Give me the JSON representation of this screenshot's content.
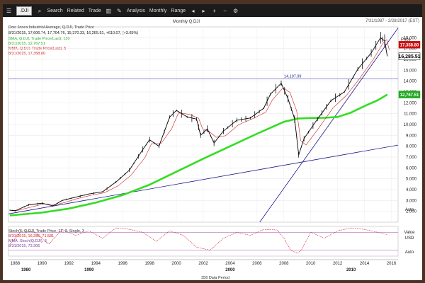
{
  "toolbar": {
    "symbol": ".DJI",
    "search": "Search",
    "related": "Related",
    "trade": "Trade",
    "analysis": "Analysis",
    "period": "Monthly",
    "range": "Range"
  },
  "header": {
    "date_range": "7/31/1987 - 2/28/2017 (EST)",
    "chart_title": "Monthly Q.DJI",
    "info_line1": "Dow Jones Industrial Average, Q.DJI, Trade Price",
    "info_line2": "8/31/2015, 17,606.74, 17,704.76, 15,370.33, 16,285.51, +610.07, (+3.65%)",
    "sma_line": "SMA, Q.DJI, Trade Price(Last), 130",
    "sma_value": "8/31/2015, 12,767.51",
    "mma_line": "MMA, Q.DJI, Trade Price(Last), 5",
    "mma_value": "8/31/2015, 17,358.80"
  },
  "colors": {
    "price": "#000000",
    "sma": "#33dd22",
    "mma": "#cc2222",
    "trend": "#1a1a8a",
    "badge_red": "#cc1111",
    "badge_green": "#22aa22"
  },
  "chart_data": {
    "type": "line",
    "title": "Monthly Q.DJI",
    "ylabel": "Price",
    "ylim": [
      1000,
      19000
    ],
    "xlim": [
      1987.5,
      2016.5
    ],
    "x_ticks": [
      1988,
      1990,
      1992,
      1994,
      1996,
      1998,
      2000,
      2002,
      2004,
      2006,
      2008,
      2010,
      2012,
      2014,
      2016
    ],
    "y_ticks": [
      2000,
      3000,
      4000,
      5000,
      6000,
      7000,
      8000,
      9000,
      10000,
      11000,
      12000,
      13000,
      14000,
      15000,
      16000,
      17000,
      18000
    ],
    "decades": [
      {
        "label": "1980",
        "x": 1988.8
      },
      {
        "label": "1990",
        "x": 1993.5
      },
      {
        "label": "2000",
        "x": 2004.0
      },
      {
        "label": "2010",
        "x": 2013.0
      }
    ],
    "series": [
      {
        "name": "Price",
        "x": [
          1987.6,
          1988.0,
          1989.0,
          1990.0,
          1990.8,
          1991.5,
          1992.5,
          1993.5,
          1994.5,
          1995.5,
          1996.5,
          1997.5,
          1998.0,
          1998.7,
          1999.5,
          2000.0,
          2000.8,
          2001.5,
          2001.8,
          2002.3,
          2002.8,
          2003.5,
          2004.5,
          2005.5,
          2006.5,
          2007.0,
          2007.8,
          2008.3,
          2008.8,
          2009.1,
          2009.5,
          2010.5,
          2011.5,
          2012.5,
          2013.5,
          2014.5,
          2015.2,
          2015.5,
          2015.7
        ],
        "values": [
          2100,
          2050,
          2600,
          2750,
          2500,
          3000,
          3300,
          3600,
          3800,
          4700,
          5800,
          7700,
          8600,
          8000,
          10700,
          11300,
          10700,
          10500,
          9000,
          9600,
          8300,
          9400,
          10400,
          10600,
          11500,
          12800,
          13800,
          12400,
          10500,
          7200,
          8700,
          10500,
          12200,
          13000,
          15100,
          16600,
          18000,
          17700,
          16285
        ]
      },
      {
        "name": "SMA 130",
        "x": [
          1987.6,
          1990.0,
          1992.0,
          1994.0,
          1996.0,
          1998.0,
          2000.0,
          2002.0,
          2004.0,
          2006.0,
          2008.0,
          2009.0,
          2010.0,
          2011.0,
          2012.0,
          2013.0,
          2014.0,
          2015.0,
          2015.7
        ],
        "values": [
          1620,
          1880,
          2250,
          2800,
          3500,
          4450,
          5650,
          6850,
          8000,
          9150,
          10250,
          10550,
          10600,
          10620,
          10700,
          11100,
          11700,
          12250,
          12767
        ]
      },
      {
        "name": "Trend 1987-2009",
        "x": [
          1987.5,
          2016.5
        ],
        "values": [
          1760,
          8100
        ]
      },
      {
        "name": "Trend 2009-2016",
        "x": [
          2006.2,
          2016.5
        ],
        "values": [
          1000,
          18900
        ]
      }
    ],
    "annotations": [
      {
        "label": "14,197.99",
        "x": 2007.8,
        "y": 14198
      }
    ],
    "price_labels": [
      {
        "text": "Price",
        "kind": "plain",
        "y": 17850
      },
      {
        "text": "16,285.51",
        "kind": "current",
        "y": 16285
      },
      {
        "text": "12,767.51",
        "kind": "sma",
        "y": 12767
      },
      {
        "text": "17,358.80",
        "kind": "mma",
        "y": 17358
      }
    ],
    "stochastic": {
      "title": "Stoch(6, Q.DJI, Trade Price, 12, 3, Single, 3",
      "value_line": "8/31/2015, 16,285, 71.581",
      "mma_title": "MMA, Stoch(Q.DJI), 3",
      "mma_value": "8/31/2015, 73.306",
      "ylim": [
        0,
        100
      ],
      "x": [
        1987.6,
        1988.5,
        1989.5,
        1990.5,
        1991.5,
        1992.5,
        1993.5,
        1994.5,
        1995.5,
        1996.5,
        1997.5,
        1998.5,
        1999.5,
        2000.5,
        2001.5,
        2002.5,
        2003.5,
        2004.5,
        2005.5,
        2006.5,
        2007.5,
        2008.0,
        2008.5,
        2009.0,
        2009.3,
        2010.0,
        2011.0,
        2012.0,
        2013.0,
        2014.0,
        2015.0,
        2015.7
      ],
      "values": [
        40,
        85,
        80,
        40,
        90,
        70,
        85,
        60,
        95,
        90,
        80,
        50,
        85,
        70,
        30,
        20,
        60,
        80,
        70,
        90,
        88,
        60,
        20,
        10,
        20,
        80,
        60,
        85,
        95,
        90,
        80,
        72
      ]
    },
    "side_labels": [
      "Auto",
      "Value",
      "USD",
      "Auto"
    ],
    "footer": "356 Data Period"
  }
}
